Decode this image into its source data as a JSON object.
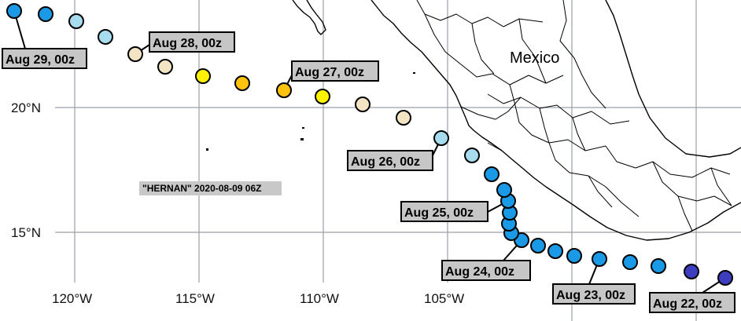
{
  "storm_label": "\"HERNAN\" 2020-08-09 06Z",
  "country_label": "Mexico",
  "lat_labels": [
    "20°N",
    "15°N"
  ],
  "lon_labels": [
    "120°W",
    "115°W",
    "110°W",
    "105°W"
  ],
  "colors": {
    "dark_blue": "#3d3dbf",
    "blue": "#1a9ae6",
    "light_blue": "#a6dcee",
    "tan": "#f3e4c4",
    "yellow": "#fff200",
    "orange": "#ffc20e",
    "grid": "#9aa0a8",
    "label_box": "#c6c6c6"
  },
  "track": [
    {
      "date": "Aug 22, 00z",
      "color": "#3d3dbf"
    },
    {
      "color": "#3d3dbf"
    },
    {
      "color": "#1a9ae6"
    },
    {
      "color": "#1a9ae6"
    },
    {
      "date": "Aug 23, 00z",
      "color": "#1a9ae6"
    },
    {
      "color": "#1a9ae6"
    },
    {
      "color": "#1a9ae6"
    },
    {
      "color": "#1a9ae6"
    },
    {
      "date": "Aug 24, 00z",
      "color": "#1a9ae6"
    },
    {
      "color": "#1a9ae6"
    },
    {
      "color": "#1a9ae6"
    },
    {
      "color": "#1a9ae6"
    },
    {
      "date": "Aug 25, 00z",
      "color": "#1a9ae6"
    },
    {
      "color": "#1a9ae6"
    },
    {
      "color": "#1a9ae6"
    },
    {
      "color": "#a6dcee"
    },
    {
      "date": "Aug 26, 00z",
      "color": "#a6dcee"
    },
    {
      "color": "#f3e4c4"
    },
    {
      "color": "#f3e4c4"
    },
    {
      "color": "#fff200"
    },
    {
      "date": "Aug 27, 00z",
      "color": "#ffc20e"
    },
    {
      "color": "#ffc20e"
    },
    {
      "color": "#fff200"
    },
    {
      "color": "#f3e4c4"
    },
    {
      "date": "Aug 28, 00z",
      "color": "#f3e4c4"
    },
    {
      "color": "#a6dcee"
    },
    {
      "color": "#a6dcee"
    },
    {
      "color": "#1a9ae6"
    },
    {
      "date": "Aug 29, 00z",
      "color": "#1a9ae6"
    }
  ]
}
